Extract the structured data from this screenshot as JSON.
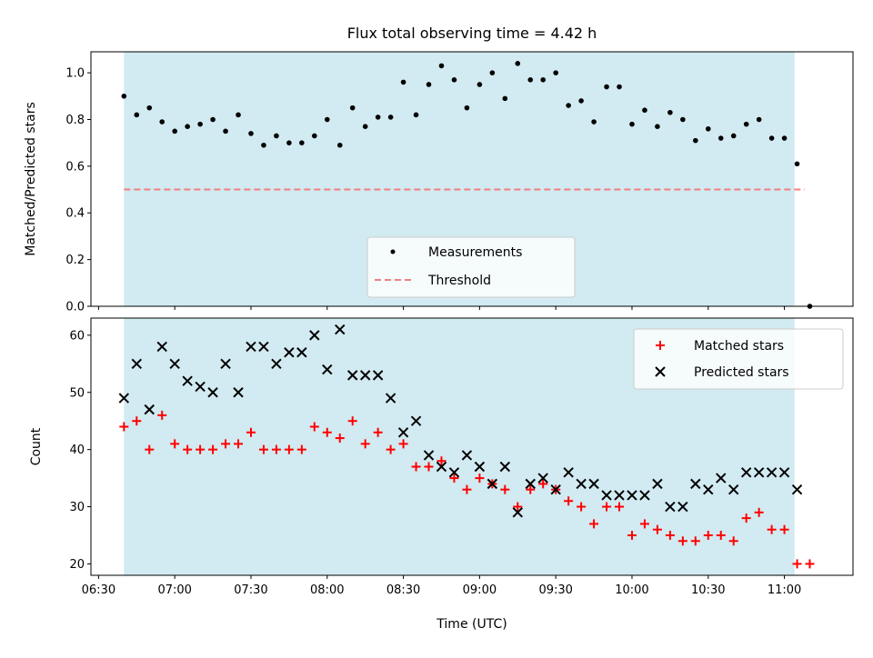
{
  "chart_data": [
    {
      "type": "scatter",
      "title": "Flux total observing time = 4.42 h",
      "xlabel": "",
      "ylabel": "Matched/Predicted stars",
      "xlim": [
        "06:27",
        "11:27"
      ],
      "ylim": [
        0,
        1.09
      ],
      "yticks": [
        "0.0",
        "0.2",
        "0.4",
        "0.6",
        "0.8",
        "1.0"
      ],
      "shaded_interval": [
        "06:40",
        "11:04"
      ],
      "shade_color": "#add8e6",
      "legend_position": "lower center",
      "series": [
        {
          "name": "Measurements",
          "marker": "dot",
          "color": "#000000",
          "x": [
            "06:40",
            "06:45",
            "06:50",
            "06:55",
            "07:00",
            "07:05",
            "07:10",
            "07:15",
            "07:20",
            "07:25",
            "07:30",
            "07:35",
            "07:40",
            "07:45",
            "07:50",
            "07:55",
            "08:00",
            "08:05",
            "08:10",
            "08:15",
            "08:20",
            "08:25",
            "08:30",
            "08:35",
            "08:40",
            "08:45",
            "08:50",
            "08:55",
            "09:00",
            "09:05",
            "09:10",
            "09:15",
            "09:20",
            "09:25",
            "09:30",
            "09:35",
            "09:40",
            "09:45",
            "09:50",
            "09:55",
            "10:00",
            "10:05",
            "10:10",
            "10:15",
            "10:20",
            "10:25",
            "10:30",
            "10:35",
            "10:40",
            "10:45",
            "10:50",
            "10:55",
            "11:00",
            "11:05",
            "11:10"
          ],
          "y": [
            0.9,
            0.82,
            0.85,
            0.79,
            0.75,
            0.77,
            0.78,
            0.8,
            0.75,
            0.82,
            0.74,
            0.69,
            0.73,
            0.7,
            0.7,
            0.73,
            0.8,
            0.69,
            0.85,
            0.77,
            0.81,
            0.81,
            0.96,
            0.82,
            0.95,
            1.03,
            0.97,
            0.85,
            0.95,
            1.0,
            0.89,
            1.04,
            0.97,
            0.97,
            1.0,
            0.86,
            0.88,
            0.79,
            0.94,
            0.94,
            0.78,
            0.84,
            0.77,
            0.83,
            0.8,
            0.71,
            0.76,
            0.72,
            0.73,
            0.78,
            0.8,
            0.72,
            0.72,
            0.61,
            0.0
          ]
        },
        {
          "name": "Threshold",
          "type": "line",
          "dashed": true,
          "color": "#f08080",
          "x": [
            "06:40",
            "11:08"
          ],
          "y": [
            0.5,
            0.5
          ]
        }
      ]
    },
    {
      "type": "scatter",
      "title": "",
      "xlabel": "Time (UTC)",
      "ylabel": "Count",
      "xlim": [
        "06:27",
        "11:27"
      ],
      "ylim": [
        18,
        63
      ],
      "yticks": [
        "20",
        "30",
        "40",
        "50",
        "60"
      ],
      "xticks": [
        "06:30",
        "07:00",
        "07:30",
        "08:00",
        "08:30",
        "09:00",
        "09:30",
        "10:00",
        "10:30",
        "11:00"
      ],
      "shaded_interval": [
        "06:40",
        "11:04"
      ],
      "shade_color": "#add8e6",
      "legend_position": "upper right",
      "series": [
        {
          "name": "Matched stars",
          "marker": "plus",
          "color": "#ff0000",
          "x": [
            "06:40",
            "06:45",
            "06:50",
            "06:55",
            "07:00",
            "07:05",
            "07:10",
            "07:15",
            "07:20",
            "07:25",
            "07:30",
            "07:35",
            "07:40",
            "07:45",
            "07:50",
            "07:55",
            "08:00",
            "08:05",
            "08:10",
            "08:15",
            "08:20",
            "08:25",
            "08:30",
            "08:35",
            "08:40",
            "08:45",
            "08:50",
            "08:55",
            "09:00",
            "09:05",
            "09:10",
            "09:15",
            "09:20",
            "09:25",
            "09:30",
            "09:35",
            "09:40",
            "09:45",
            "09:50",
            "09:55",
            "10:00",
            "10:05",
            "10:10",
            "10:15",
            "10:20",
            "10:25",
            "10:30",
            "10:35",
            "10:40",
            "10:45",
            "10:50",
            "10:55",
            "11:00",
            "11:05",
            "11:10"
          ],
          "y": [
            44,
            45,
            40,
            46,
            41,
            40,
            40,
            40,
            41,
            41,
            43,
            40,
            40,
            40,
            40,
            44,
            43,
            42,
            45,
            41,
            43,
            40,
            41,
            37,
            37,
            38,
            35,
            33,
            35,
            34,
            33,
            30,
            33,
            34,
            33,
            31,
            30,
            27,
            30,
            30,
            25,
            27,
            26,
            25,
            24,
            24,
            25,
            25,
            24,
            28,
            29,
            26,
            26,
            20,
            20
          ]
        },
        {
          "name": "Predicted stars",
          "marker": "x",
          "color": "#000000",
          "x": [
            "06:40",
            "06:45",
            "06:50",
            "06:55",
            "07:00",
            "07:05",
            "07:10",
            "07:15",
            "07:20",
            "07:25",
            "07:30",
            "07:35",
            "07:40",
            "07:45",
            "07:50",
            "07:55",
            "08:00",
            "08:05",
            "08:10",
            "08:15",
            "08:20",
            "08:25",
            "08:30",
            "08:35",
            "08:40",
            "08:45",
            "08:50",
            "08:55",
            "09:00",
            "09:05",
            "09:10",
            "09:15",
            "09:20",
            "09:25",
            "09:30",
            "09:35",
            "09:40",
            "09:45",
            "09:50",
            "09:55",
            "10:00",
            "10:05",
            "10:10",
            "10:15",
            "10:20",
            "10:25",
            "10:30",
            "10:35",
            "10:40",
            "10:45",
            "10:50",
            "10:55",
            "11:00",
            "11:05"
          ],
          "y": [
            49,
            55,
            47,
            58,
            55,
            52,
            51,
            50,
            55,
            50,
            58,
            58,
            55,
            57,
            57,
            60,
            54,
            61,
            53,
            53,
            53,
            49,
            43,
            45,
            39,
            37,
            36,
            39,
            37,
            34,
            37,
            29,
            34,
            35,
            33,
            36,
            34,
            34,
            32,
            32,
            32,
            32,
            34,
            30,
            30,
            34,
            33,
            35,
            33,
            36,
            36,
            36,
            36,
            33
          ]
        }
      ]
    }
  ]
}
